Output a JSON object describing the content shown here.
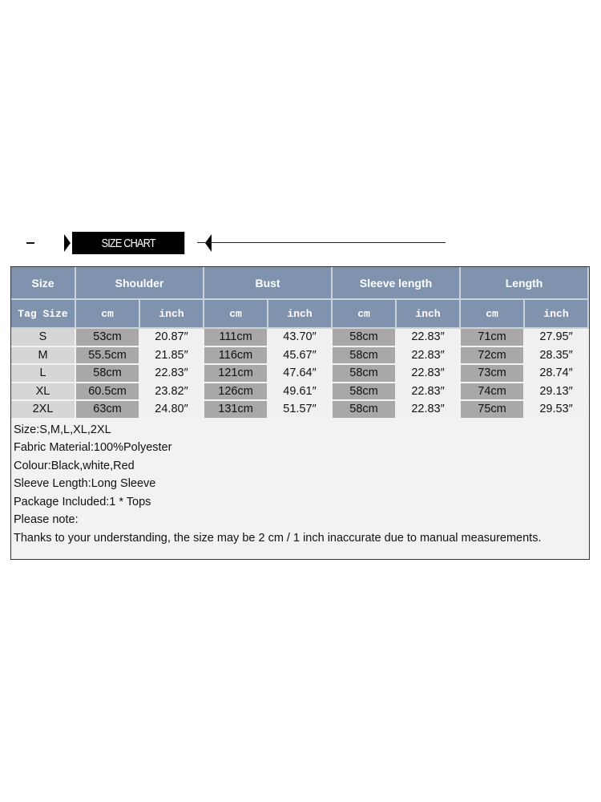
{
  "banner": {
    "title": "SIZE CHART"
  },
  "table": {
    "groups": [
      "Size",
      "Shoulder",
      "Bust",
      "Sleeve length",
      "Length"
    ],
    "subheaders": [
      "Tag Size",
      "cm",
      "inch",
      "cm",
      "inch",
      "cm",
      "inch",
      "cm",
      "inch"
    ],
    "rows": [
      [
        "S",
        "53cm",
        "20.87″",
        "111cm",
        "43.70″",
        "58cm",
        "22.83″",
        "71cm",
        "27.95″"
      ],
      [
        "M",
        "55.5cm",
        "21.85″",
        "116cm",
        "45.67″",
        "58cm",
        "22.83″",
        "72cm",
        "28.35″"
      ],
      [
        "L",
        "58cm",
        "22.83″",
        "121cm",
        "47.64″",
        "58cm",
        "22.83″",
        "73cm",
        "28.74″"
      ],
      [
        "XL",
        "60.5cm",
        "23.82″",
        "126cm",
        "49.61″",
        "58cm",
        "22.83″",
        "74cm",
        "29.13″"
      ],
      [
        "2XL",
        "63cm",
        "24.80″",
        "131cm",
        "51.57″",
        "58cm",
        "22.83″",
        "75cm",
        "29.53″"
      ]
    ]
  },
  "notes": [
    "Size:S,M,L,XL,2XL",
    "Fabric Material:100%Polyester",
    "Colour:Black,white,Red",
    "Sleeve Length:Long Sleeve",
    "Package Included:1 * Tops",
    "Please note:",
    "Thanks to your understanding, the size may be 2 cm / 1 inch inaccurate due to manual measurements."
  ],
  "colors": {
    "header": "#7f93ae",
    "cm_cell": "#aaa7a7",
    "size_cell": "#d6d6d6"
  }
}
